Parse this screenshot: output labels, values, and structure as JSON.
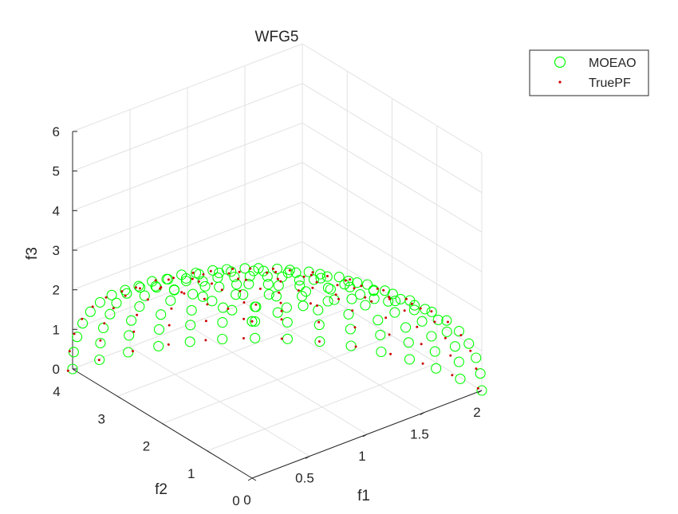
{
  "chart_data": {
    "type": "scatter",
    "projection": "3d",
    "title": "WFG5",
    "xlabel": "f1",
    "ylabel": "f2",
    "zlabel": "f3",
    "xlim": [
      0,
      2
    ],
    "ylim": [
      0,
      4
    ],
    "zlim": [
      0,
      6
    ],
    "xticks": [
      "0",
      "0.5",
      "1",
      "1.5",
      "2"
    ],
    "yticks": [
      "0",
      "1",
      "2",
      "3",
      "4"
    ],
    "zticks": [
      "0",
      "1",
      "2",
      "3",
      "4",
      "5",
      "6"
    ],
    "grid": true,
    "legend_position": "top-right",
    "series": [
      {
        "name": "MOEAO",
        "marker": "circle-open",
        "color": "#00ff00",
        "shape": "sphere-octant",
        "radii": [
          2,
          4,
          6
        ],
        "grid_steps": 14
      },
      {
        "name": "TruePF",
        "marker": "dot",
        "color": "#cc0000",
        "shape": "sphere-octant",
        "radii": [
          2,
          4,
          6
        ],
        "grid_steps": 12
      }
    ]
  }
}
